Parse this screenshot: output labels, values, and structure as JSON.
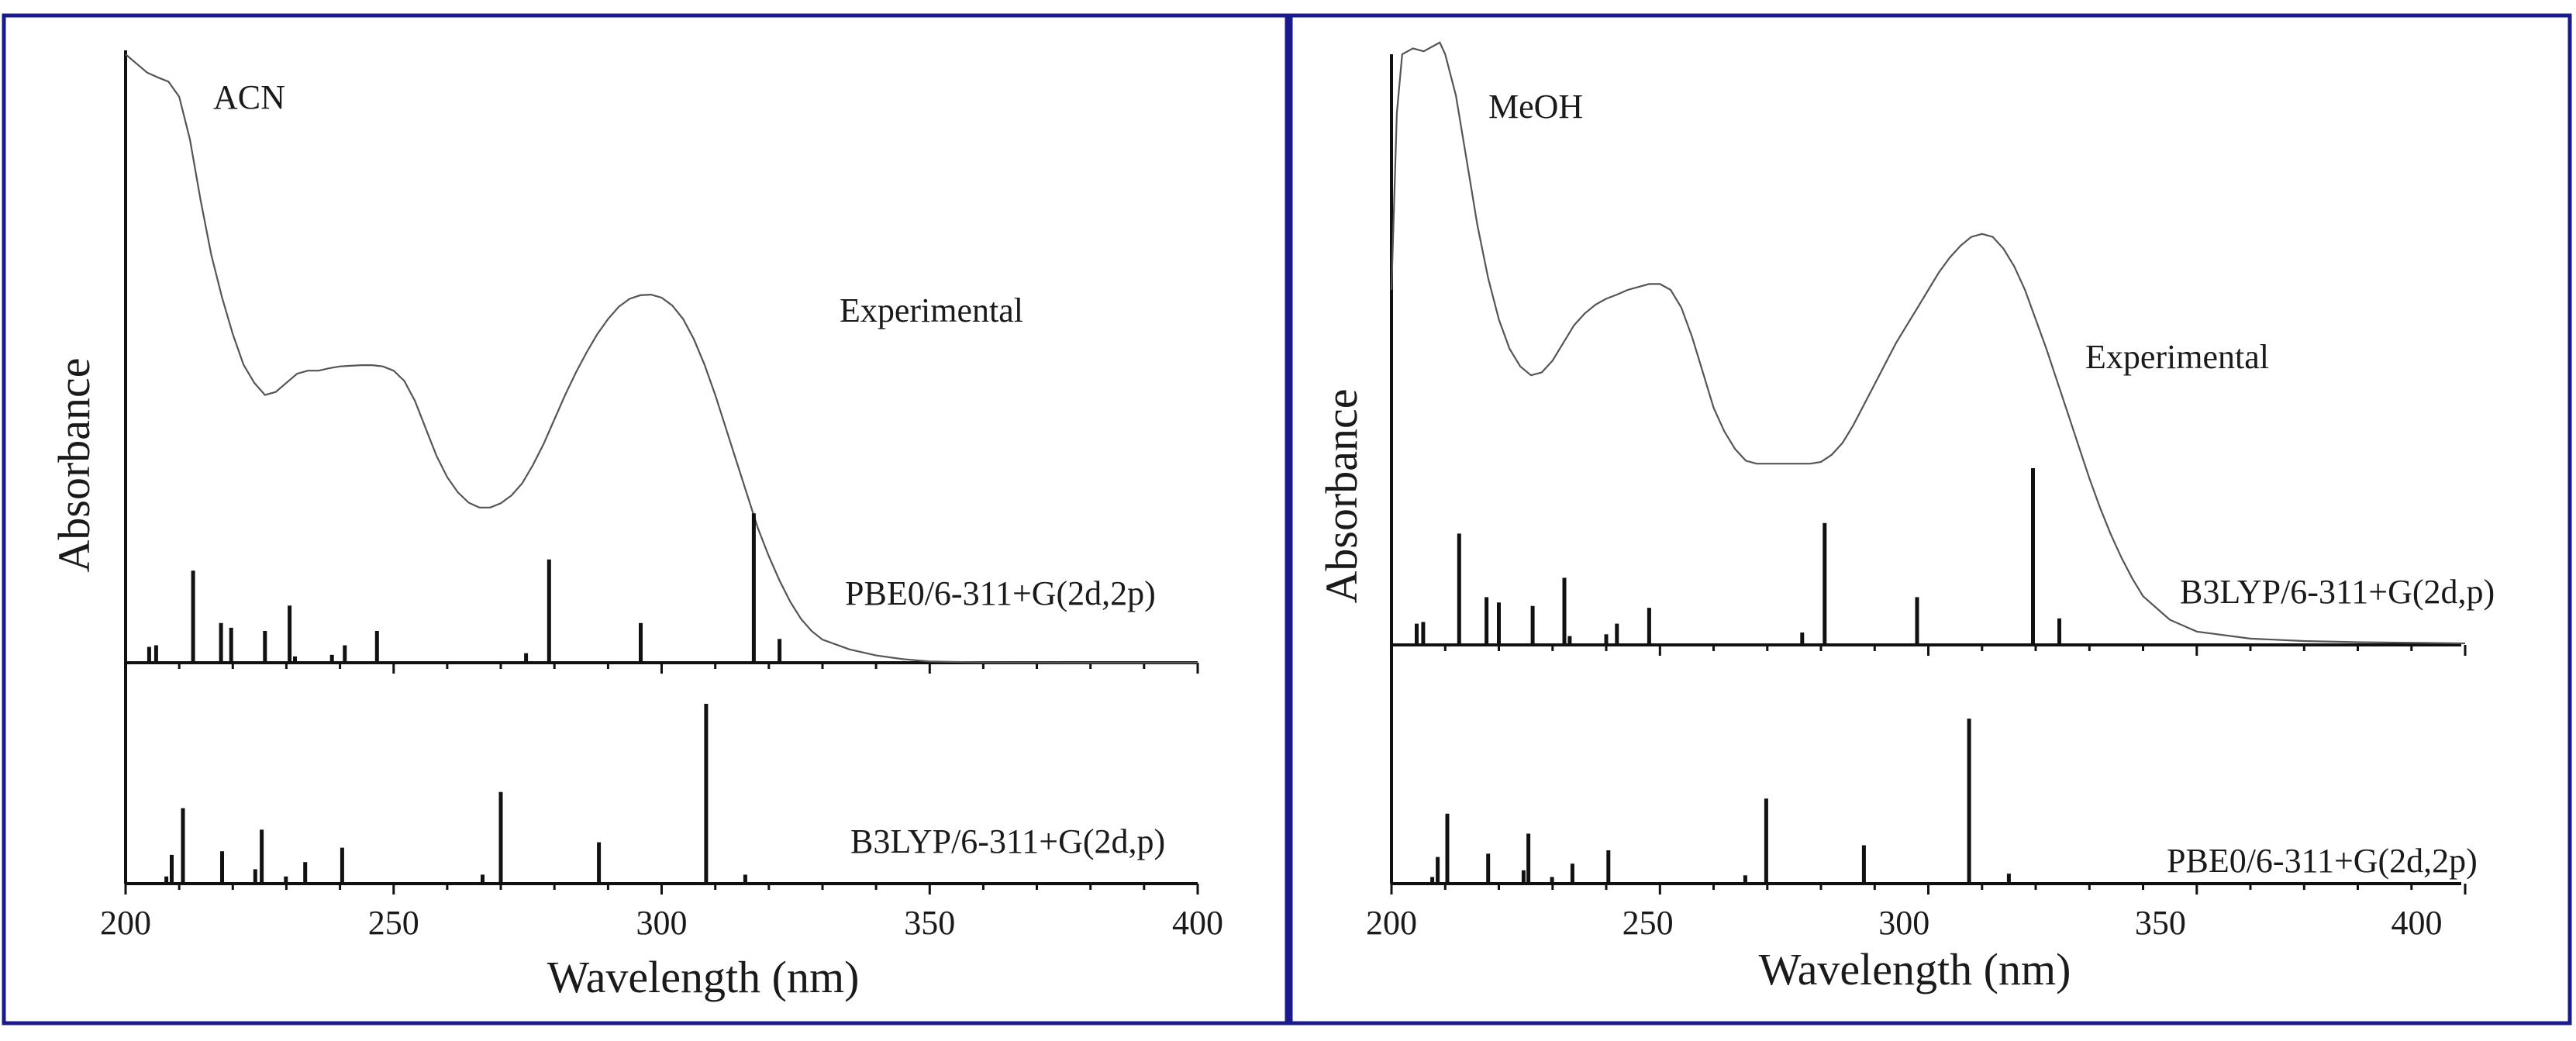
{
  "chart_data": [
    {
      "type": "line",
      "panel": "left",
      "xlabel": "Wavelength (nm)",
      "ylabel": "Absorbance",
      "xlim": [
        200,
        400
      ],
      "x_ticks": [
        200,
        250,
        300,
        350,
        400
      ],
      "solvent_label": "ACN",
      "experimental": {
        "name": "Experimental",
        "x": [
          200,
          202,
          204,
          206,
          208,
          210,
          212,
          214,
          216,
          218,
          220,
          222,
          224,
          226,
          228,
          230,
          232,
          234,
          236,
          238,
          240,
          242,
          244,
          246,
          248,
          250,
          252,
          254,
          256,
          258,
          260,
          262,
          264,
          266,
          268,
          270,
          272,
          274,
          276,
          278,
          280,
          282,
          284,
          286,
          288,
          290,
          292,
          294,
          296,
          298,
          300,
          302,
          304,
          306,
          308,
          310,
          312,
          314,
          316,
          318,
          320,
          322,
          324,
          326,
          328,
          330,
          335,
          340,
          345,
          350,
          360,
          380,
          400
        ],
        "y": [
          1.0,
          0.985,
          0.97,
          0.962,
          0.955,
          0.93,
          0.86,
          0.76,
          0.67,
          0.6,
          0.54,
          0.49,
          0.46,
          0.44,
          0.445,
          0.46,
          0.475,
          0.48,
          0.48,
          0.484,
          0.487,
          0.488,
          0.489,
          0.489,
          0.487,
          0.48,
          0.463,
          0.43,
          0.385,
          0.34,
          0.305,
          0.28,
          0.263,
          0.255,
          0.255,
          0.262,
          0.275,
          0.295,
          0.325,
          0.36,
          0.4,
          0.44,
          0.477,
          0.51,
          0.54,
          0.565,
          0.585,
          0.598,
          0.604,
          0.605,
          0.6,
          0.587,
          0.565,
          0.532,
          0.49,
          0.44,
          0.385,
          0.33,
          0.275,
          0.22,
          0.175,
          0.135,
          0.1,
          0.072,
          0.052,
          0.038,
          0.022,
          0.012,
          0.006,
          0.002,
          0.0005,
          0.0,
          0.0
        ]
      },
      "sticks": [
        {
          "name": "PBE0/6-311+G(2d,2p)",
          "x": [
            204.4,
            205.7,
            212.6,
            217.8,
            219.7,
            226.0,
            230.6,
            231.6,
            238.5,
            240.9,
            246.9,
            274.7,
            279.0,
            296.1,
            317.2,
            322.0
          ],
          "y": [
            0.1,
            0.11,
            0.58,
            0.25,
            0.22,
            0.2,
            0.36,
            0.04,
            0.05,
            0.11,
            0.2,
            0.06,
            0.65,
            0.25,
            0.94,
            0.15
          ]
        },
        {
          "name": "B3LYP/6-311+G(2d,p)",
          "x": [
            207.6,
            208.6,
            210.7,
            218.0,
            224.2,
            225.4,
            229.9,
            233.5,
            240.4,
            266.6,
            270.0,
            288.3,
            308.3,
            315.6
          ],
          "y": [
            0.04,
            0.16,
            0.42,
            0.18,
            0.08,
            0.3,
            0.04,
            0.12,
            0.2,
            0.05,
            0.51,
            0.23,
            1.0,
            0.05
          ]
        }
      ]
    },
    {
      "type": "line",
      "panel": "right",
      "xlabel": "Wavelength (nm)",
      "ylabel": "Absorbance",
      "xlim": [
        200,
        400
      ],
      "x_ticks": [
        200,
        250,
        300,
        350,
        400
      ],
      "solvent_label": "MeOH",
      "experimental": {
        "name": "Experimental",
        "x": [
          200,
          201,
          202,
          204,
          206,
          208,
          209,
          210,
          212,
          214,
          216,
          218,
          220,
          222,
          224,
          226,
          228,
          230,
          232,
          234,
          236,
          238,
          240,
          242,
          244,
          246,
          248,
          250,
          252,
          254,
          256,
          258,
          260,
          262,
          264,
          266,
          268,
          270,
          272,
          274,
          276,
          278,
          280,
          282,
          284,
          286,
          288,
          290,
          292,
          294,
          296,
          298,
          300,
          302,
          304,
          306,
          308,
          310,
          312,
          314,
          316,
          318,
          320,
          322,
          324,
          326,
          328,
          330,
          332,
          334,
          336,
          338,
          340,
          345,
          350,
          360,
          370,
          380,
          390,
          400
        ],
        "y": [
          0.6,
          0.9,
          1.0,
          1.01,
          1.005,
          1.015,
          1.02,
          1.0,
          0.93,
          0.82,
          0.71,
          0.62,
          0.55,
          0.5,
          0.47,
          0.455,
          0.46,
          0.48,
          0.51,
          0.54,
          0.56,
          0.575,
          0.585,
          0.592,
          0.6,
          0.605,
          0.61,
          0.61,
          0.6,
          0.57,
          0.52,
          0.46,
          0.4,
          0.36,
          0.33,
          0.31,
          0.305,
          0.305,
          0.305,
          0.305,
          0.305,
          0.305,
          0.308,
          0.32,
          0.34,
          0.37,
          0.405,
          0.44,
          0.475,
          0.51,
          0.54,
          0.57,
          0.6,
          0.63,
          0.655,
          0.675,
          0.69,
          0.695,
          0.69,
          0.67,
          0.64,
          0.6,
          0.55,
          0.5,
          0.445,
          0.39,
          0.335,
          0.28,
          0.23,
          0.185,
          0.145,
          0.11,
          0.08,
          0.04,
          0.02,
          0.008,
          0.004,
          0.002,
          0.001,
          0.0
        ]
      },
      "sticks": [
        {
          "name": "B3LYP/6-311+G(2d,p)",
          "x": [
            204.7,
            205.9,
            212.6,
            217.7,
            220.0,
            226.3,
            232.2,
            233.2,
            240.0,
            242.0,
            248.0,
            276.5,
            280.7,
            297.9,
            319.5,
            324.4
          ],
          "y": [
            0.12,
            0.13,
            0.63,
            0.27,
            0.24,
            0.22,
            0.38,
            0.05,
            0.06,
            0.12,
            0.21,
            0.07,
            0.69,
            0.27,
            1.0,
            0.15
          ]
        },
        {
          "name": "PBE0/6-311+G(2d,2p)",
          "x": [
            207.6,
            208.6,
            210.4,
            218.0,
            224.6,
            225.5,
            229.9,
            233.7,
            240.4,
            265.9,
            269.8,
            288.0,
            307.6,
            315.0
          ],
          "y": [
            0.04,
            0.16,
            0.42,
            0.18,
            0.08,
            0.3,
            0.04,
            0.12,
            0.2,
            0.05,
            0.51,
            0.23,
            0.99,
            0.06
          ]
        }
      ]
    }
  ],
  "labels": {
    "left": {
      "solvent": "ACN",
      "experimental": "Experimental",
      "upper_method": "PBE0/6-311+G(2d,2p)",
      "lower_method": "B3LYP/6-311+G(2d,p)",
      "ylabel": "Absorbance",
      "xlabel": "Wavelength (nm)",
      "ticks": [
        "200",
        "250",
        "300",
        "350",
        "400"
      ]
    },
    "right": {
      "solvent": "MeOH",
      "experimental": "Experimental",
      "upper_method": "B3LYP/6-311+G(2d,p)",
      "lower_method": "PBE0/6-311+G(2d,2p)",
      "ylabel": "Absorbance",
      "xlabel": "Wavelength (nm)",
      "ticks": [
        "200",
        "250",
        "300",
        "350",
        "400"
      ]
    }
  },
  "colors": {
    "frame": "#1a1a8c",
    "axis": "#111111",
    "curve": "#555555"
  }
}
